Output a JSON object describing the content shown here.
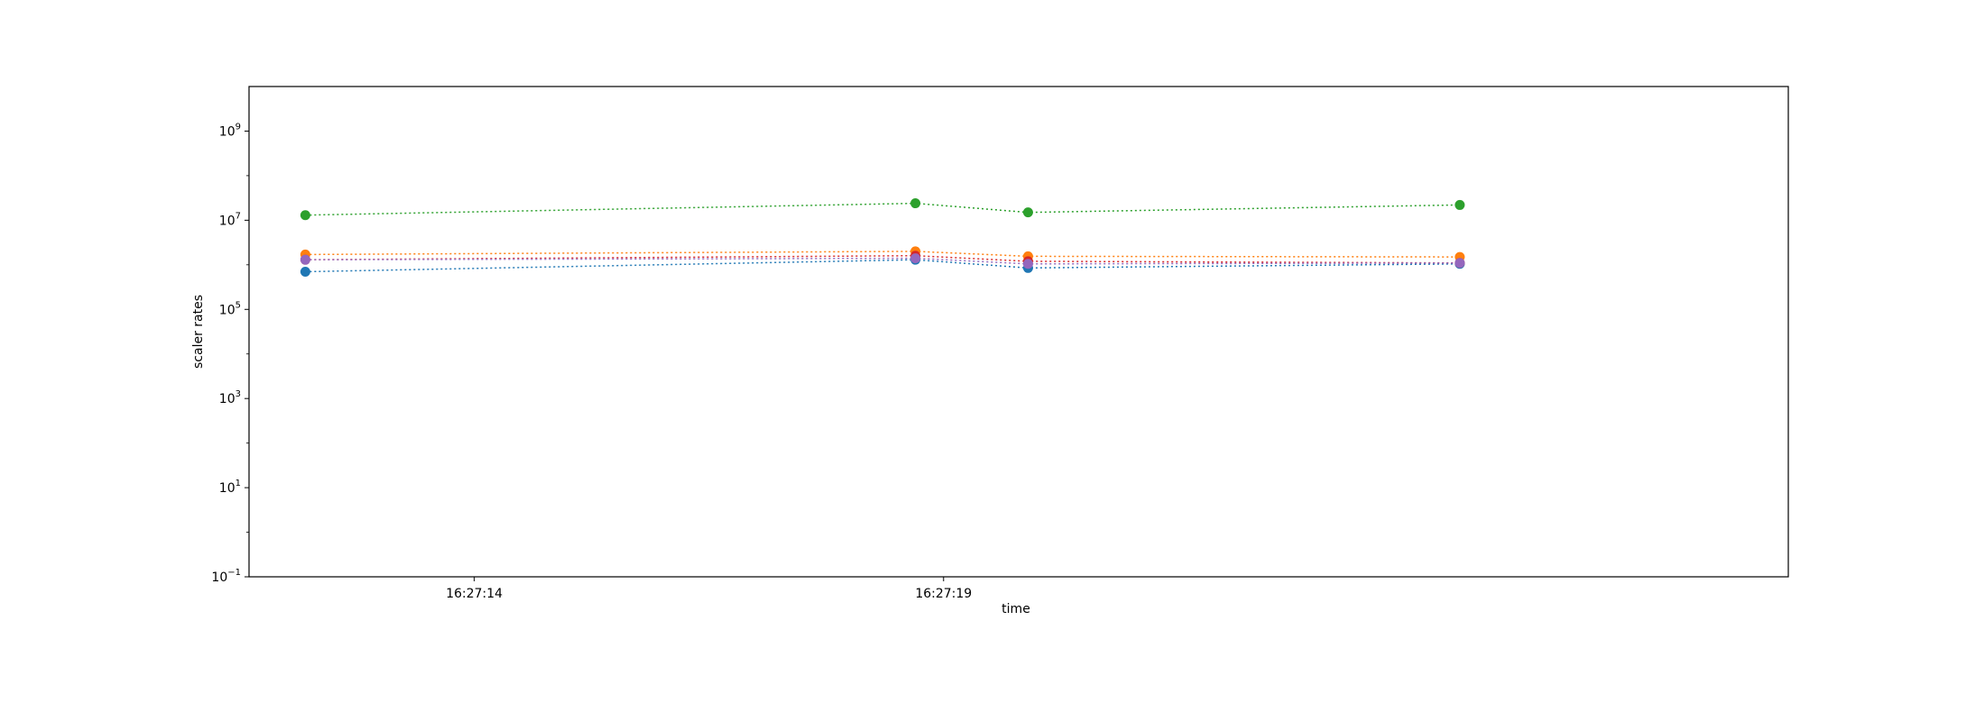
{
  "chart_data": {
    "type": "line",
    "title": "",
    "xlabel": "time",
    "ylabel": "scaler rates",
    "yscale": "log",
    "ylim": [
      0.1,
      10000000000
    ],
    "xlim": [
      "16:27:11.6",
      "16:27:28.0"
    ],
    "grid": false,
    "line_style": "dotted",
    "x": [
      "16:27:12.2",
      "16:27:18.7",
      "16:27:19.9",
      "16:27:24.5"
    ],
    "x_ticks": [
      {
        "value": "16:27:14",
        "label": "16:27:14"
      },
      {
        "value": "16:27:19",
        "label": "16:27:19"
      }
    ],
    "y_ticks": [
      {
        "value": 0.1,
        "base": "10",
        "exp": "−1"
      },
      {
        "value": 10,
        "base": "10",
        "exp": "1"
      },
      {
        "value": 1000,
        "base": "10",
        "exp": "3"
      },
      {
        "value": 100000,
        "base": "10",
        "exp": "5"
      },
      {
        "value": 10000000,
        "base": "10",
        "exp": "7"
      },
      {
        "value": 1000000000,
        "base": "10",
        "exp": "9"
      }
    ],
    "series": [
      {
        "color": "#1f77b4",
        "values": [
          700000,
          1300000,
          850000,
          1050000
        ]
      },
      {
        "color": "#ff7f0e",
        "values": [
          1700000,
          2000000,
          1550000,
          1500000
        ]
      },
      {
        "color": "#2ca02c",
        "values": [
          13000000,
          24000000,
          15000000,
          22000000
        ]
      },
      {
        "color": "#d62728",
        "values": [
          1300000,
          1600000,
          1200000,
          1100000
        ]
      },
      {
        "color": "#9467bd",
        "values": [
          1300000,
          1400000,
          1050000,
          1100000
        ]
      }
    ]
  }
}
